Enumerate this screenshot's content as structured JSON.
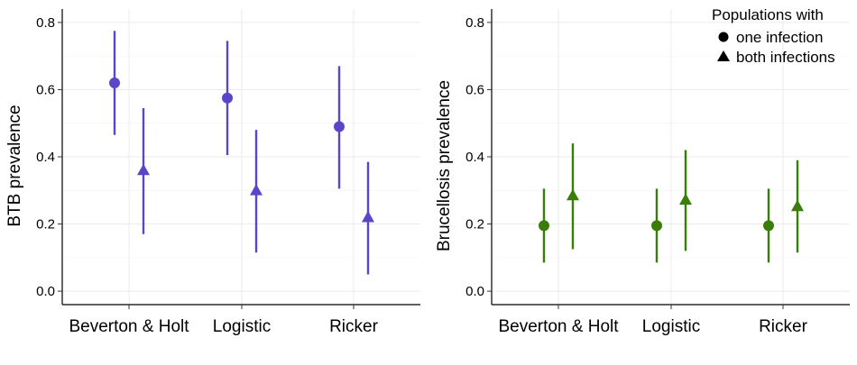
{
  "chart_data": [
    {
      "type": "scatter",
      "ylabel": "BTB prevalence",
      "ylim": [
        -0.04,
        0.84
      ],
      "yticks": [
        0.0,
        0.2,
        0.4,
        0.6,
        0.8
      ],
      "ytick_labels": [
        "0.0",
        "0.2",
        "0.4",
        "0.6",
        "0.8"
      ],
      "categories": [
        "Beverton & Holt",
        "Logistic",
        "Ricker"
      ],
      "grid": true,
      "color": "#5b45c9",
      "series": [
        {
          "name": "one infection",
          "shape": "circle",
          "values": [
            0.62,
            0.575,
            0.49
          ],
          "lower": [
            0.465,
            0.405,
            0.305
          ],
          "upper": [
            0.775,
            0.745,
            0.67
          ]
        },
        {
          "name": "both infections",
          "shape": "triangle",
          "values": [
            0.36,
            0.3,
            0.22
          ],
          "lower": [
            0.17,
            0.115,
            0.05
          ],
          "upper": [
            0.545,
            0.48,
            0.385
          ]
        }
      ]
    },
    {
      "type": "scatter",
      "ylabel": "Brucellosis prevalence",
      "ylim": [
        -0.04,
        0.84
      ],
      "yticks": [
        0.0,
        0.2,
        0.4,
        0.6,
        0.8
      ],
      "ytick_labels": [
        "0.0",
        "0.2",
        "0.4",
        "0.6",
        "0.8"
      ],
      "categories": [
        "Beverton & Holt",
        "Logistic",
        "Ricker"
      ],
      "grid": true,
      "color": "#3a7d08",
      "legend": {
        "title": "Populations with",
        "placement": "top-right",
        "entries": [
          {
            "label": "one infection",
            "shape": "circle"
          },
          {
            "label": "both infections",
            "shape": "triangle"
          }
        ]
      },
      "series": [
        {
          "name": "one infection",
          "shape": "circle",
          "values": [
            0.195,
            0.195,
            0.195
          ],
          "lower": [
            0.085,
            0.085,
            0.085
          ],
          "upper": [
            0.305,
            0.305,
            0.305
          ]
        },
        {
          "name": "both infections",
          "shape": "triangle",
          "values": [
            0.285,
            0.272,
            0.253
          ],
          "lower": [
            0.125,
            0.12,
            0.115
          ],
          "upper": [
            0.44,
            0.42,
            0.39
          ]
        }
      ]
    }
  ]
}
